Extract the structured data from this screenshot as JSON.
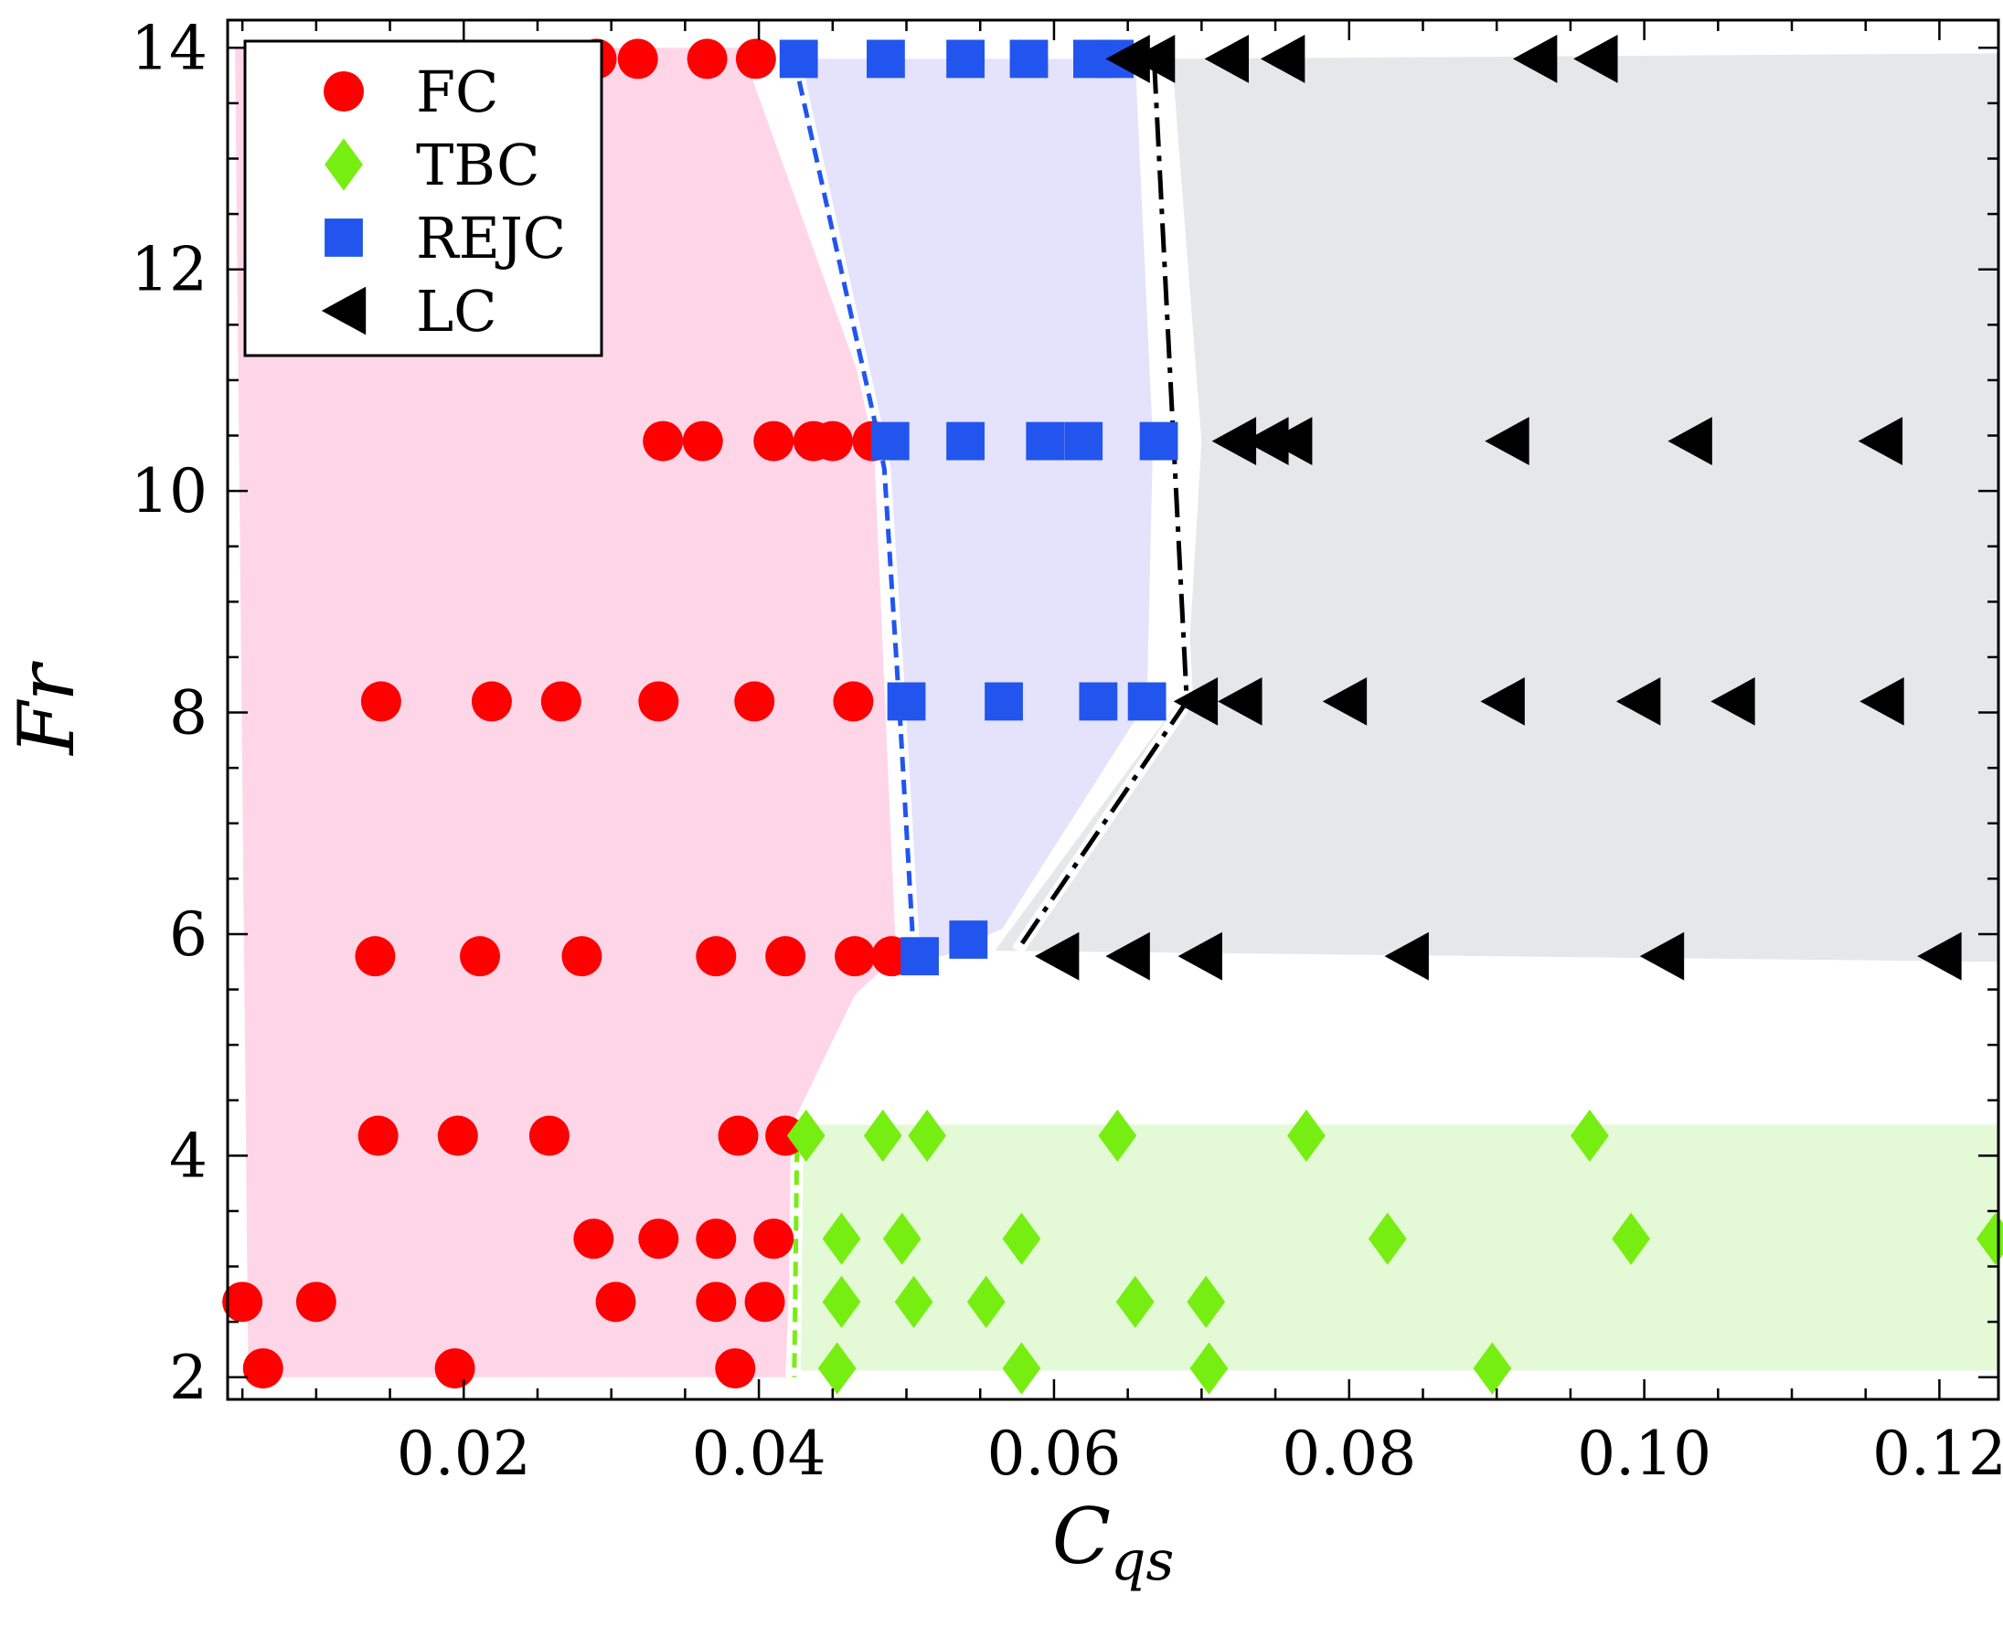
{
  "chart_data": {
    "type": "scatter",
    "xlabel": "C",
    "xlabel_sub": "qs",
    "ylabel": "Fr",
    "xlim": [
      0.004,
      0.124
    ],
    "ylim": [
      1.8,
      14.25
    ],
    "x_ticks": [
      0.02,
      0.04,
      0.06,
      0.08,
      0.1,
      0.12
    ],
    "x_tick_labels": [
      "0.02",
      "0.04",
      "0.06",
      "0.08",
      "0.10",
      "0.12"
    ],
    "y_ticks": [
      2,
      4,
      6,
      8,
      10,
      12,
      14
    ],
    "y_tick_labels": [
      "2",
      "4",
      "6",
      "8",
      "10",
      "12",
      "14"
    ],
    "legend_position": "top-left",
    "series": [
      {
        "name": "FC",
        "marker": "circle",
        "color": "#ff0000",
        "points": [
          [
            0.029,
            13.9
          ],
          [
            0.0318,
            13.9
          ],
          [
            0.0365,
            13.9
          ],
          [
            0.0398,
            13.9
          ],
          [
            0.0335,
            10.45
          ],
          [
            0.0362,
            10.45
          ],
          [
            0.041,
            10.45
          ],
          [
            0.0437,
            10.45
          ],
          [
            0.045,
            10.45
          ],
          [
            0.0477,
            10.45
          ],
          [
            0.0144,
            8.1
          ],
          [
            0.0219,
            8.1
          ],
          [
            0.0266,
            8.1
          ],
          [
            0.0332,
            8.1
          ],
          [
            0.0397,
            8.1
          ],
          [
            0.0464,
            8.1
          ],
          [
            0.014,
            5.8
          ],
          [
            0.0211,
            5.8
          ],
          [
            0.028,
            5.8
          ],
          [
            0.0371,
            5.8
          ],
          [
            0.0418,
            5.8
          ],
          [
            0.0465,
            5.8
          ],
          [
            0.049,
            5.8
          ],
          [
            0.0142,
            4.18
          ],
          [
            0.0196,
            4.18
          ],
          [
            0.0258,
            4.18
          ],
          [
            0.0386,
            4.18
          ],
          [
            0.0418,
            4.18
          ],
          [
            0.0288,
            3.25
          ],
          [
            0.0332,
            3.25
          ],
          [
            0.0371,
            3.25
          ],
          [
            0.041,
            3.25
          ],
          [
            0.005,
            2.68
          ],
          [
            0.01,
            2.68
          ],
          [
            0.0303,
            2.68
          ],
          [
            0.0371,
            2.68
          ],
          [
            0.0404,
            2.68
          ],
          [
            0.0064,
            2.08
          ],
          [
            0.0194,
            2.08
          ],
          [
            0.0384,
            2.08
          ]
        ]
      },
      {
        "name": "TBC",
        "marker": "diamond",
        "color": "#77ee11",
        "points": [
          [
            0.0432,
            4.18
          ],
          [
            0.0484,
            4.18
          ],
          [
            0.0514,
            4.18
          ],
          [
            0.0643,
            4.18
          ],
          [
            0.0771,
            4.18
          ],
          [
            0.0963,
            4.18
          ],
          [
            0.0456,
            3.25
          ],
          [
            0.0497,
            3.25
          ],
          [
            0.0578,
            3.25
          ],
          [
            0.0826,
            3.25
          ],
          [
            0.0991,
            3.25
          ],
          [
            0.1238,
            3.25
          ],
          [
            0.0456,
            2.68
          ],
          [
            0.0505,
            2.68
          ],
          [
            0.0554,
            2.68
          ],
          [
            0.0655,
            2.68
          ],
          [
            0.0703,
            2.68
          ],
          [
            0.0453,
            2.08
          ],
          [
            0.0578,
            2.08
          ],
          [
            0.0705,
            2.08
          ],
          [
            0.0897,
            2.08
          ]
        ]
      },
      {
        "name": "REJC",
        "marker": "square",
        "color": "#2255ee",
        "points": [
          [
            0.0427,
            13.9
          ],
          [
            0.0486,
            13.9
          ],
          [
            0.054,
            13.9
          ],
          [
            0.0583,
            13.9
          ],
          [
            0.0626,
            13.9
          ],
          [
            0.0641,
            13.9
          ],
          [
            0.0489,
            10.45
          ],
          [
            0.054,
            10.45
          ],
          [
            0.0594,
            10.45
          ],
          [
            0.062,
            10.45
          ],
          [
            0.0671,
            10.45
          ],
          [
            0.05,
            8.1
          ],
          [
            0.0566,
            8.1
          ],
          [
            0.063,
            8.1
          ],
          [
            0.0663,
            8.1
          ],
          [
            0.0509,
            5.8
          ],
          [
            0.0542,
            5.95
          ]
        ]
      },
      {
        "name": "LC",
        "marker": "triangle-left",
        "color": "#000000",
        "points": [
          [
            0.065,
            13.9
          ],
          [
            0.0667,
            13.9
          ],
          [
            0.0717,
            13.9
          ],
          [
            0.0755,
            13.9
          ],
          [
            0.0926,
            13.9
          ],
          [
            0.0967,
            13.9
          ],
          [
            0.0722,
            10.45
          ],
          [
            0.0744,
            10.45
          ],
          [
            0.076,
            10.45
          ],
          [
            0.0907,
            10.45
          ],
          [
            0.1031,
            10.45
          ],
          [
            0.116,
            10.45
          ],
          [
            0.0696,
            8.1
          ],
          [
            0.0726,
            8.1
          ],
          [
            0.0797,
            8.1
          ],
          [
            0.0904,
            8.1
          ],
          [
            0.0996,
            8.1
          ],
          [
            0.106,
            8.1
          ],
          [
            0.1161,
            8.1
          ],
          [
            0.0602,
            5.8
          ],
          [
            0.065,
            5.8
          ],
          [
            0.0699,
            5.8
          ],
          [
            0.0839,
            5.8
          ],
          [
            0.1012,
            5.8
          ],
          [
            0.12,
            5.8
          ]
        ]
      }
    ],
    "regions": [
      {
        "name": "FC",
        "color": "#ffd6e8",
        "polygon": [
          [
            0.0045,
            14.0
          ],
          [
            0.0388,
            14.0
          ],
          [
            0.0477,
            10.7
          ],
          [
            0.0493,
            5.8
          ],
          [
            0.0465,
            5.45
          ],
          [
            0.0425,
            4.35
          ],
          [
            0.0418,
            2.0
          ],
          [
            0.0054,
            2.0
          ]
        ]
      },
      {
        "name": "REJC",
        "color": "#e5e2fb",
        "polygon": [
          [
            0.0427,
            13.9
          ],
          [
            0.0655,
            13.9
          ],
          [
            0.0667,
            10.45
          ],
          [
            0.0663,
            8.1
          ],
          [
            0.0565,
            6.05
          ],
          [
            0.0525,
            5.8
          ],
          [
            0.0505,
            5.8
          ],
          [
            0.0492,
            8.1
          ],
          [
            0.0484,
            10.45
          ]
        ]
      },
      {
        "name": "LC",
        "color": "#e5e7e8",
        "polygon": [
          [
            0.068,
            13.9
          ],
          [
            0.124,
            13.95
          ],
          [
            0.124,
            5.75
          ],
          [
            0.056,
            5.85
          ],
          [
            0.069,
            8.2
          ],
          [
            0.07,
            10.45
          ]
        ]
      },
      {
        "name": "TBC",
        "color": "#e4fad6",
        "polygon": [
          [
            0.0425,
            4.28
          ],
          [
            0.124,
            4.28
          ],
          [
            0.124,
            2.06
          ],
          [
            0.0425,
            2.06
          ]
        ]
      }
    ],
    "boundaries": [
      {
        "name": "FC-REJC",
        "style": "dashed",
        "color": "#2255ee",
        "points": [
          [
            0.0424,
            13.9
          ],
          [
            0.0479,
            10.6
          ],
          [
            0.0485,
            10.2
          ],
          [
            0.0495,
            8.1
          ],
          [
            0.0505,
            5.8
          ]
        ]
      },
      {
        "name": "REJC-LC",
        "style": "dash-dot",
        "color": "#000000",
        "points": [
          [
            0.0668,
            13.85
          ],
          [
            0.069,
            8.1
          ],
          [
            0.0575,
            5.85
          ]
        ]
      },
      {
        "name": "FC-TBC",
        "style": "dashed",
        "color": "#77ee11",
        "points": [
          [
            0.0426,
            4.28
          ],
          [
            0.0424,
            2.0
          ]
        ]
      }
    ]
  }
}
